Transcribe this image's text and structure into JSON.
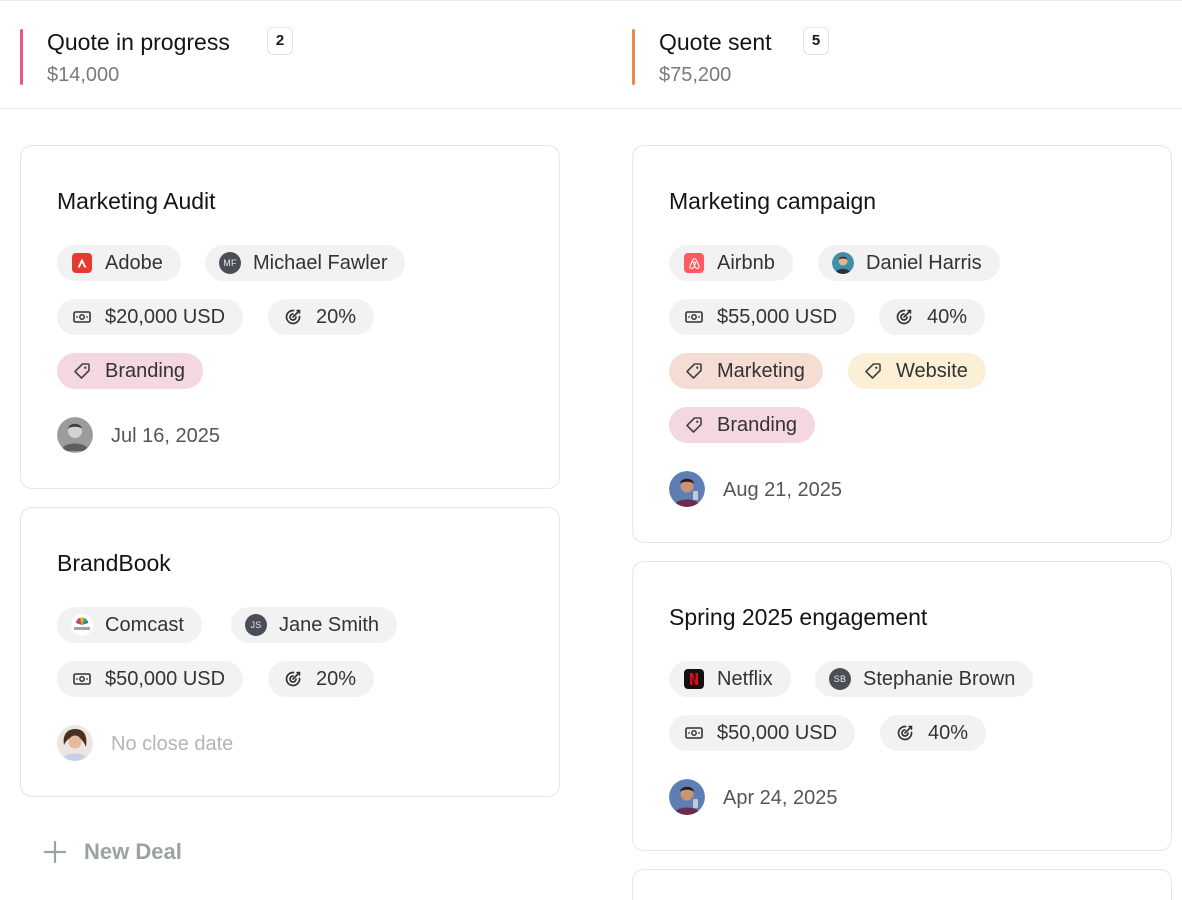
{
  "columns": [
    {
      "title": "Quote in progress",
      "count": "2",
      "amount": "$14,000",
      "accent": "#e8548c",
      "deals": [
        {
          "title": "Marketing Audit",
          "company": "Adobe",
          "company_icon": "adobe-logo-icon",
          "contact": "Michael Fawler",
          "contact_initials": "MF",
          "value": "$20,000 USD",
          "probability": "20%",
          "tags": [
            "Branding"
          ],
          "close_date": "Jul 16, 2025"
        },
        {
          "title": "BrandBook",
          "company": "Comcast",
          "company_icon": "comcast-logo-icon",
          "contact": "Jane Smith",
          "contact_initials": "JS",
          "value": "$50,000 USD",
          "probability": "20%",
          "tags": [],
          "close_date": "No close date"
        }
      ],
      "new_deal_label": "New Deal"
    },
    {
      "title": "Quote sent",
      "count": "5",
      "amount": "$75,200",
      "accent": "#e8894f",
      "deals": [
        {
          "title": "Marketing campaign",
          "company": "Airbnb",
          "company_icon": "airbnb-logo-icon",
          "contact": "Daniel Harris",
          "value": "$55,000 USD",
          "probability": "40%",
          "tags": [
            "Marketing",
            "Website",
            "Branding"
          ],
          "close_date": "Aug 21, 2025"
        },
        {
          "title": "Spring 2025 engagement",
          "company": "Netflix",
          "company_icon": "netflix-logo-icon",
          "contact": "Stephanie Brown",
          "contact_initials": "SB",
          "value": "$50,000 USD",
          "probability": "40%",
          "tags": [],
          "close_date": "Apr 24, 2025"
        }
      ]
    }
  ],
  "colors": {
    "tag_branding": "#f5d7e0",
    "tag_marketing": "#f6ddd4",
    "tag_website": "#fbf0d6",
    "adobe": "#e63a2e",
    "airbnb": "#ff5a5f",
    "netflix": "#e50914"
  }
}
